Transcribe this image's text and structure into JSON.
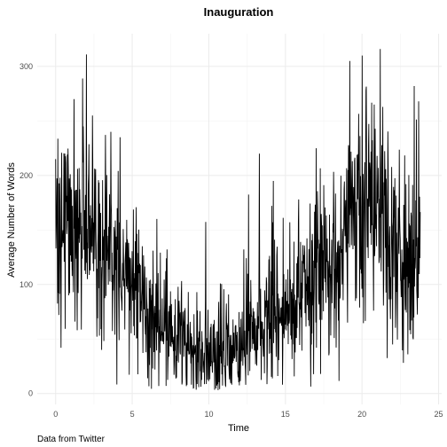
{
  "chart_data": {
    "type": "line",
    "title": "Inauguration",
    "xlabel": "Time",
    "ylabel": "Average Number of Words",
    "caption": "Data from Twitter",
    "xlim": [
      -1.2,
      25.2
    ],
    "ylim": [
      -10,
      330
    ],
    "x_ticks": [
      0,
      5,
      10,
      15,
      20,
      25
    ],
    "x_tick_labels": [
      "0",
      "5",
      "10",
      "15",
      "20",
      "25"
    ],
    "y_ticks": [
      0,
      100,
      200,
      300
    ],
    "y_tick_labels": [
      "0",
      "100",
      "200",
      "300"
    ],
    "grid": true,
    "legend": "none",
    "series": [
      {
        "name": "Average Number of Words",
        "color": "#000000",
        "trend": [
          {
            "x": 0.0,
            "y": 140
          },
          {
            "x": 1.0,
            "y": 140
          },
          {
            "x": 2.0,
            "y": 150
          },
          {
            "x": 3.0,
            "y": 130
          },
          {
            "x": 4.0,
            "y": 110
          },
          {
            "x": 5.0,
            "y": 95
          },
          {
            "x": 6.0,
            "y": 75
          },
          {
            "x": 7.0,
            "y": 60
          },
          {
            "x": 8.0,
            "y": 50
          },
          {
            "x": 9.0,
            "y": 40
          },
          {
            "x": 10.0,
            "y": 35
          },
          {
            "x": 11.0,
            "y": 35
          },
          {
            "x": 12.0,
            "y": 45
          },
          {
            "x": 13.0,
            "y": 60
          },
          {
            "x": 14.0,
            "y": 70
          },
          {
            "x": 15.0,
            "y": 80
          },
          {
            "x": 16.0,
            "y": 95
          },
          {
            "x": 17.0,
            "y": 105
          },
          {
            "x": 18.0,
            "y": 120
          },
          {
            "x": 19.0,
            "y": 150
          },
          {
            "x": 20.0,
            "y": 170
          },
          {
            "x": 21.0,
            "y": 160
          },
          {
            "x": 22.0,
            "y": 140
          },
          {
            "x": 23.0,
            "y": 120
          },
          {
            "x": 23.8,
            "y": 140
          }
        ],
        "spikes": [
          {
            "x": 0.0,
            "y": 215
          },
          {
            "x": 0.6,
            "y": 220
          },
          {
            "x": 1.2,
            "y": 270
          },
          {
            "x": 1.8,
            "y": 245
          },
          {
            "x": 2.0,
            "y": 311
          },
          {
            "x": 2.4,
            "y": 255
          },
          {
            "x": 3.6,
            "y": 240
          },
          {
            "x": 4.2,
            "y": 235
          },
          {
            "x": 13.3,
            "y": 220
          },
          {
            "x": 14.2,
            "y": 195
          },
          {
            "x": 17.0,
            "y": 225
          },
          {
            "x": 19.2,
            "y": 305
          },
          {
            "x": 20.0,
            "y": 310
          },
          {
            "x": 20.8,
            "y": 265
          },
          {
            "x": 21.2,
            "y": 316
          },
          {
            "x": 23.4,
            "y": 282
          },
          {
            "x": 23.7,
            "y": 268
          }
        ],
        "dips": [
          {
            "x": 0.2,
            "y": 72
          },
          {
            "x": 1.4,
            "y": 58
          },
          {
            "x": 3.0,
            "y": 40
          },
          {
            "x": 6.0,
            "y": 14
          },
          {
            "x": 7.2,
            "y": 7
          },
          {
            "x": 9.0,
            "y": 5
          },
          {
            "x": 10.7,
            "y": 4
          },
          {
            "x": 12.4,
            "y": 8
          },
          {
            "x": 14.5,
            "y": 16
          },
          {
            "x": 17.3,
            "y": 18
          },
          {
            "x": 22.0,
            "y": 45
          },
          {
            "x": 23.0,
            "y": 36
          }
        ]
      }
    ]
  }
}
